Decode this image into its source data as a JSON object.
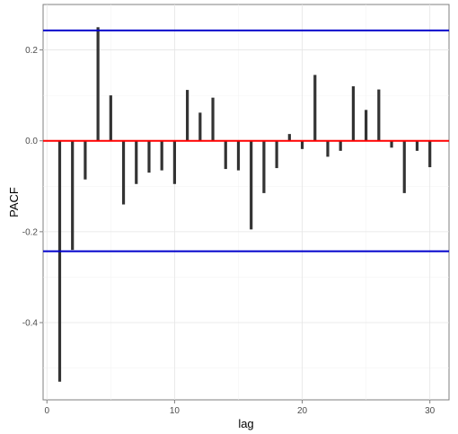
{
  "chart_data": {
    "type": "bar",
    "xlabel": "lag",
    "ylabel": "PACF",
    "xlim": [
      -0.3,
      31.5
    ],
    "ylim": [
      -0.57,
      0.3
    ],
    "x_ticks": [
      0,
      10,
      20,
      30
    ],
    "y_ticks": [
      -0.4,
      -0.2,
      0.0,
      0.2
    ],
    "y_tick_labels": [
      "-0.4",
      "-0.2",
      "0.0",
      "0.2"
    ],
    "grid": true,
    "lags": [
      1,
      2,
      3,
      4,
      5,
      6,
      7,
      8,
      9,
      10,
      11,
      12,
      13,
      14,
      15,
      16,
      17,
      18,
      19,
      20,
      21,
      22,
      23,
      24,
      25,
      26,
      27,
      28,
      29,
      30
    ],
    "values": [
      -0.53,
      -0.24,
      -0.085,
      0.25,
      0.1,
      -0.14,
      -0.095,
      -0.07,
      -0.065,
      -0.095,
      0.112,
      0.062,
      0.095,
      -0.062,
      -0.065,
      -0.195,
      -0.115,
      -0.06,
      0.015,
      -0.018,
      0.145,
      -0.035,
      -0.022,
      0.12,
      0.068,
      0.113,
      -0.015,
      -0.115,
      -0.022,
      -0.058
    ],
    "reference_lines": {
      "zero": {
        "value": 0,
        "color": "#ff0000"
      },
      "confidence": {
        "values": [
          0.243,
          -0.243
        ],
        "color": "#0000cc"
      }
    },
    "bar_color": "#333333"
  }
}
